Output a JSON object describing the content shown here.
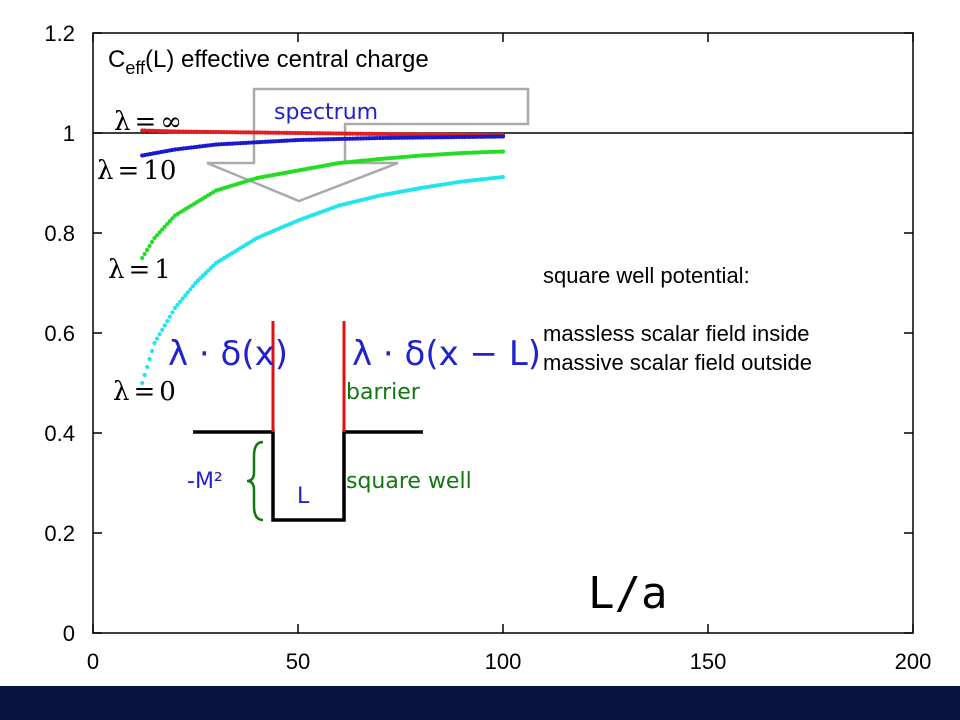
{
  "colors": {
    "background": "#ffffff",
    "footer": "#0a1440",
    "series_infinity": "#e02020",
    "series_10": "#1a1acc",
    "series_1": "#22dd22",
    "series_0": "#22e4ee",
    "barrier_line": "#dd1111",
    "well_line": "#000000",
    "spectrum_arrow": "#aaaaaa",
    "blue_text": "#2222cc",
    "green_text": "#117711"
  },
  "chart_data": {
    "type": "scatter",
    "title_main": "C",
    "title_sub": "eff",
    "title_rest": "(L) effective central charge",
    "xlim": [
      0,
      200
    ],
    "ylim": [
      0,
      1.2
    ],
    "x_ticks": [
      "0",
      "50",
      "100",
      "150",
      "200"
    ],
    "y_ticks": [
      "0",
      "0.2",
      "0.4",
      "0.6",
      "0.8",
      "1",
      "1.2"
    ],
    "x_tick_values": [
      0,
      50,
      100,
      150,
      200
    ],
    "y_tick_values": [
      0,
      0.2,
      0.4,
      0.6,
      0.8,
      1.0,
      1.2
    ],
    "reference_line_y": 1.0,
    "xlabel": "L/a",
    "series": [
      {
        "key": "inf",
        "label_lhs": "λ",
        "label_rhs": "∞",
        "color": "#e02020",
        "points": [
          [
            12,
            1.005
          ],
          [
            20,
            1.003
          ],
          [
            40,
            1.001
          ],
          [
            60,
            0.999
          ],
          [
            80,
            0.997
          ],
          [
            100,
            0.996
          ]
        ]
      },
      {
        "key": "ten",
        "label_lhs": "λ",
        "label_rhs": "10",
        "color": "#1a1acc",
        "points": [
          [
            12,
            0.955
          ],
          [
            20,
            0.967
          ],
          [
            30,
            0.977
          ],
          [
            50,
            0.986
          ],
          [
            70,
            0.99
          ],
          [
            100,
            0.993
          ]
        ]
      },
      {
        "key": "one",
        "label_lhs": "λ",
        "label_rhs": "1",
        "color": "#22dd22",
        "points": [
          [
            12,
            0.75
          ],
          [
            15,
            0.79
          ],
          [
            20,
            0.835
          ],
          [
            30,
            0.885
          ],
          [
            40,
            0.91
          ],
          [
            50,
            0.925
          ],
          [
            60,
            0.94
          ],
          [
            70,
            0.948
          ],
          [
            80,
            0.955
          ],
          [
            90,
            0.96
          ],
          [
            100,
            0.963
          ]
        ]
      },
      {
        "key": "zero",
        "label_lhs": "λ",
        "label_rhs": "0",
        "color": "#22e4ee",
        "points": [
          [
            12,
            0.5
          ],
          [
            15,
            0.58
          ],
          [
            20,
            0.65
          ],
          [
            25,
            0.7
          ],
          [
            30,
            0.74
          ],
          [
            40,
            0.79
          ],
          [
            50,
            0.825
          ],
          [
            60,
            0.855
          ],
          [
            70,
            0.875
          ],
          [
            80,
            0.89
          ],
          [
            90,
            0.903
          ],
          [
            100,
            0.912
          ]
        ]
      }
    ]
  },
  "annotations": {
    "spectrum_label": "spectrum",
    "delta_left": "λ · δ(x)",
    "delta_right": "λ · δ(x − L)",
    "barrier_label": "barrier",
    "square_well_label": "square well",
    "m2_label": "-M²",
    "l_label": "L",
    "desc_line1": "square well potential:",
    "desc_line2": "massless scalar field inside",
    "desc_line3": "massive scalar field outside"
  }
}
